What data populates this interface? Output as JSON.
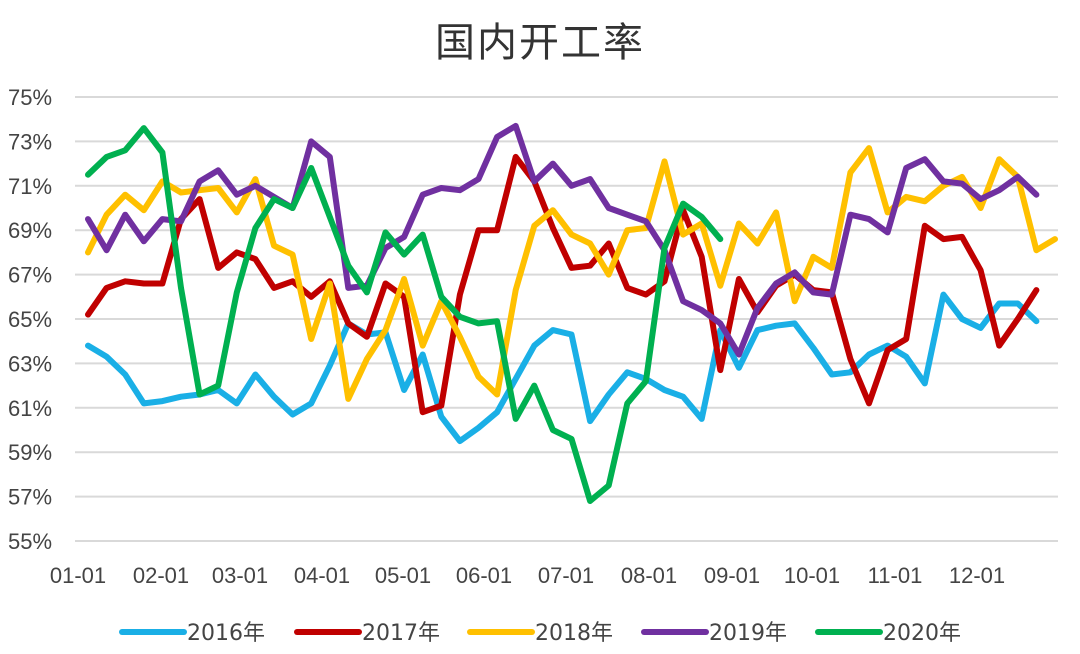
{
  "chart_data": {
    "type": "line",
    "title": "国内开工率",
    "xlabel": "",
    "ylabel": "",
    "ylim": [
      55,
      75
    ],
    "yticks": [
      "75%",
      "73%",
      "71%",
      "69%",
      "67%",
      "65%",
      "63%",
      "61%",
      "59%",
      "57%",
      "55%"
    ],
    "yticks_values": [
      75,
      73,
      71,
      69,
      67,
      65,
      63,
      61,
      59,
      57,
      55
    ],
    "xticks": [
      "01-01",
      "02-01",
      "03-01",
      "04-01",
      "05-01",
      "06-01",
      "07-01",
      "08-01",
      "09-01",
      "10-01",
      "11-01",
      "12-01"
    ],
    "x_points": 53,
    "grid": "horizontal",
    "legend": "bottom",
    "series": [
      {
        "name": "2016年",
        "color": "#1AAFE6",
        "values": [
          63.8,
          63.3,
          62.5,
          61.2,
          61.3,
          61.5,
          61.6,
          61.8,
          61.2,
          62.5,
          61.5,
          60.7,
          61.2,
          62.9,
          64.8,
          64.3,
          64.4,
          61.8,
          63.4,
          60.6,
          59.5,
          60.1,
          60.8,
          62.3,
          63.8,
          64.5,
          64.3,
          60.4,
          61.6,
          62.6,
          62.3,
          61.8,
          61.5,
          60.5,
          64.5,
          62.8,
          64.5,
          64.7,
          64.8,
          63.7,
          62.5,
          62.6,
          63.4,
          63.8,
          63.3,
          62.1,
          66.1,
          65.0,
          64.6,
          65.7,
          65.7,
          64.9
        ]
      },
      {
        "name": "2017年",
        "color": "#C00000",
        "values": [
          65.2,
          66.4,
          66.7,
          66.6,
          66.6,
          69.5,
          70.4,
          67.3,
          68.0,
          67.7,
          66.4,
          66.7,
          66.0,
          66.7,
          64.8,
          64.2,
          66.6,
          66.0,
          60.8,
          61.1,
          66.1,
          69.0,
          69.0,
          72.3,
          71.2,
          69.1,
          67.3,
          67.4,
          68.4,
          66.4,
          66.1,
          66.7,
          69.9,
          67.8,
          62.7,
          66.8,
          65.3,
          66.5,
          67.0,
          66.3,
          66.2,
          63.2,
          61.2,
          63.6,
          64.1,
          69.2,
          68.6,
          68.7,
          67.2,
          63.8,
          65.0,
          66.3
        ]
      },
      {
        "name": "2018年",
        "color": "#FFC000",
        "values": [
          68.0,
          69.7,
          70.6,
          69.9,
          71.2,
          70.7,
          70.8,
          70.9,
          69.8,
          71.3,
          68.3,
          67.9,
          64.1,
          66.6,
          61.4,
          63.2,
          64.5,
          66.8,
          63.8,
          65.8,
          64.2,
          62.4,
          61.6,
          66.3,
          69.2,
          69.9,
          68.8,
          68.4,
          67.0,
          69.0,
          69.1,
          72.1,
          68.8,
          69.3,
          66.5,
          69.3,
          68.4,
          69.8,
          65.8,
          67.8,
          67.3,
          71.6,
          72.7,
          69.8,
          70.5,
          70.3,
          71.0,
          71.4,
          70.0,
          72.2,
          71.4,
          68.1,
          68.6
        ]
      },
      {
        "name": "2019年",
        "color": "#7030A0",
        "values": [
          69.5,
          68.1,
          69.7,
          68.5,
          69.5,
          69.4,
          71.2,
          71.7,
          70.6,
          71.0,
          70.5,
          70.0,
          73.0,
          72.3,
          66.4,
          66.5,
          68.2,
          68.7,
          70.6,
          70.9,
          70.8,
          71.3,
          73.2,
          73.7,
          71.2,
          72.0,
          71.0,
          71.3,
          70.0,
          69.7,
          69.4,
          68.1,
          65.8,
          65.4,
          64.8,
          63.4,
          65.5,
          66.6,
          67.1,
          66.2,
          66.1,
          69.7,
          69.5,
          68.9,
          71.8,
          72.2,
          71.2,
          71.1,
          70.4,
          70.8,
          71.4,
          70.6
        ]
      },
      {
        "name": "2020年",
        "color": "#00B050",
        "values": [
          71.5,
          72.3,
          72.6,
          73.6,
          72.5,
          66.4,
          61.6,
          62.0,
          66.2,
          69.1,
          70.4,
          70.0,
          71.8,
          69.6,
          67.4,
          66.2,
          68.9,
          67.9,
          68.8,
          66.0,
          65.1,
          64.8,
          64.9,
          60.5,
          62.0,
          60.0,
          59.6,
          56.8,
          57.5,
          61.2,
          62.2,
          68.2,
          70.2,
          69.6,
          68.6
        ]
      }
    ]
  }
}
